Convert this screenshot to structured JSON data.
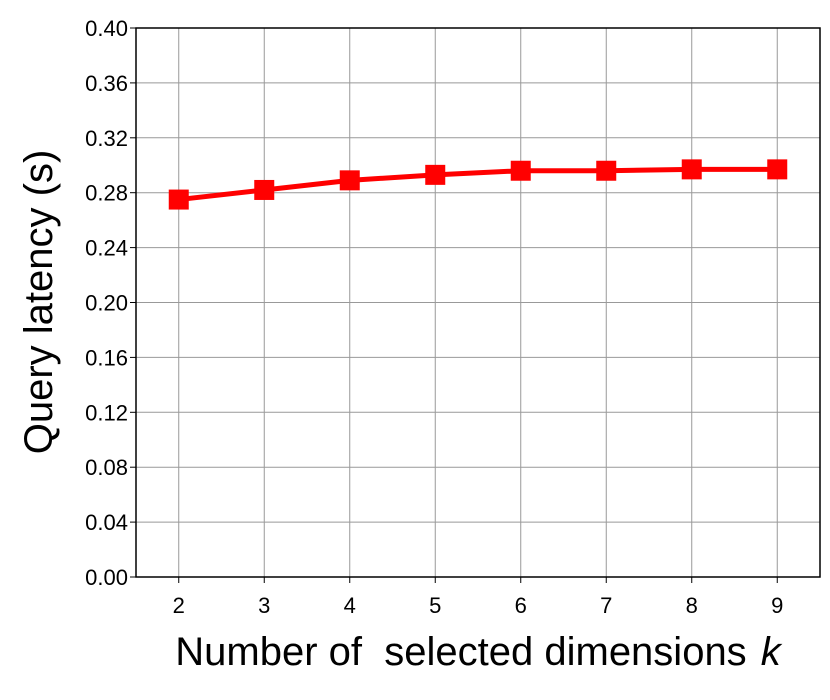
{
  "chart_data": {
    "type": "line",
    "xlabel": "Number of  selected dimensions",
    "xlabel_symbol": "k",
    "ylabel": "Query latency (s)",
    "x": [
      2,
      3,
      4,
      5,
      6,
      7,
      8,
      9
    ],
    "series": [
      {
        "name": "Query latency",
        "color": "#ff0000",
        "values": [
          0.275,
          0.282,
          0.289,
          0.293,
          0.296,
          0.296,
          0.297,
          0.297
        ]
      }
    ],
    "xlim": [
      1.5,
      9.5
    ],
    "xticks": [
      2,
      3,
      4,
      5,
      6,
      7,
      8,
      9
    ],
    "ylim": [
      0,
      0.4
    ],
    "yticks": [
      {
        "value": 0,
        "label": "0.00"
      },
      0.04,
      0.08,
      0.12,
      0.16,
      {
        "value": 0.2,
        "label": "0.20"
      },
      0.24,
      0.28,
      0.32,
      0.36,
      {
        "value": 0.4,
        "label": "0.40"
      }
    ],
    "grid": true
  }
}
